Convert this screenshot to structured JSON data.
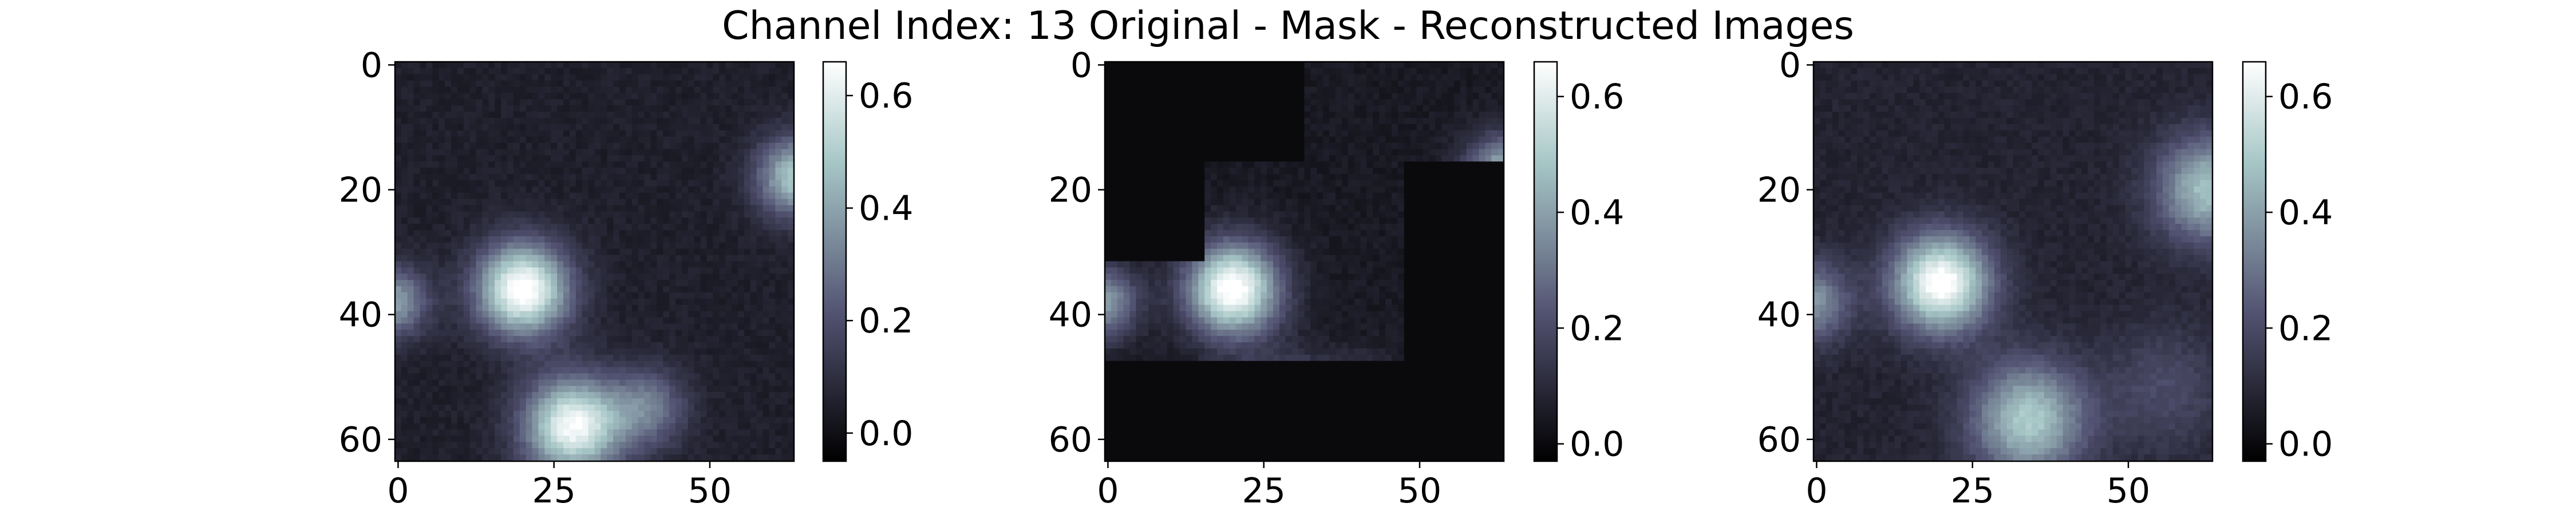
{
  "figure": {
    "title": "Channel Index: 13 Original - Mask - Reconstructed Images"
  },
  "chart_data": [
    {
      "type": "heatmap",
      "panel": "original",
      "colormap": "bone",
      "grid": false,
      "x_ticks": [
        "0",
        "25",
        "50"
      ],
      "y_ticks": [
        "0",
        "20",
        "40",
        "60"
      ],
      "xlim": [
        -0.5,
        63.5
      ],
      "ylim": [
        63.5,
        -0.5
      ],
      "colorbar": {
        "ticks": [
          "0.0",
          "0.2",
          "0.4",
          "0.6"
        ],
        "tick_values": [
          0.0,
          0.2,
          0.4,
          0.6
        ],
        "range": [
          -0.05,
          0.66
        ]
      },
      "background_level": 0.05,
      "blobs": [
        {
          "x": 20,
          "y": 36,
          "peak": 0.64,
          "sigma": 5.2
        },
        {
          "x": 28,
          "y": 58,
          "peak": 0.6,
          "sigma": 5.5
        },
        {
          "x": 40,
          "y": 55,
          "peak": 0.25,
          "sigma": 4.5
        },
        {
          "x": 64,
          "y": 18,
          "peak": 0.45,
          "sigma": 4.5
        },
        {
          "x": -1,
          "y": 38,
          "peak": 0.35,
          "sigma": 4.0
        }
      ]
    },
    {
      "type": "heatmap",
      "panel": "mask",
      "colormap": "bone",
      "grid": false,
      "x_ticks": [
        "0",
        "25",
        "50"
      ],
      "y_ticks": [
        "0",
        "20",
        "40",
        "60"
      ],
      "xlim": [
        -0.5,
        63.5
      ],
      "ylim": [
        63.5,
        -0.5
      ],
      "colorbar": {
        "ticks": [
          "0.0",
          "0.2",
          "0.4",
          "0.6"
        ],
        "tick_values": [
          0.0,
          0.2,
          0.4,
          0.6
        ],
        "range": [
          -0.03,
          0.66
        ]
      },
      "background_level": 0.05,
      "masked_value": 0.0,
      "visible_regions": [
        {
          "x0": 32,
          "x1": 64,
          "y0": 0,
          "y1": 16
        },
        {
          "x0": 16,
          "x1": 48,
          "y0": 16,
          "y1": 32
        },
        {
          "x0": 0,
          "x1": 48,
          "y0": 32,
          "y1": 48
        }
      ],
      "blobs": [
        {
          "x": 20,
          "y": 36,
          "peak": 0.64,
          "sigma": 5.2
        },
        {
          "x": 28,
          "y": 58,
          "peak": 0.6,
          "sigma": 5.5
        },
        {
          "x": 40,
          "y": 55,
          "peak": 0.25,
          "sigma": 4.5
        },
        {
          "x": 64,
          "y": 18,
          "peak": 0.45,
          "sigma": 4.5
        },
        {
          "x": -1,
          "y": 38,
          "peak": 0.35,
          "sigma": 4.0
        }
      ]
    },
    {
      "type": "heatmap",
      "panel": "reconstructed",
      "colormap": "bone",
      "grid": false,
      "x_ticks": [
        "0",
        "25",
        "50"
      ],
      "y_ticks": [
        "0",
        "20",
        "40",
        "60"
      ],
      "xlim": [
        -0.5,
        63.5
      ],
      "ylim": [
        63.5,
        -0.5
      ],
      "colorbar": {
        "ticks": [
          "0.0",
          "0.2",
          "0.4",
          "0.6"
        ],
        "tick_values": [
          0.0,
          0.2,
          0.4,
          0.6
        ],
        "range": [
          -0.03,
          0.66
        ]
      },
      "background_level": 0.08,
      "blobs": [
        {
          "x": 20,
          "y": 35,
          "peak": 0.6,
          "sigma": 5.5
        },
        {
          "x": 34,
          "y": 57,
          "peak": 0.42,
          "sigma": 6.5
        },
        {
          "x": 63,
          "y": 20,
          "peak": 0.4,
          "sigma": 6.0
        },
        {
          "x": -1,
          "y": 38,
          "peak": 0.3,
          "sigma": 4.5
        },
        {
          "x": 56,
          "y": 52,
          "peak": 0.12,
          "sigma": 7.0
        }
      ]
    }
  ]
}
